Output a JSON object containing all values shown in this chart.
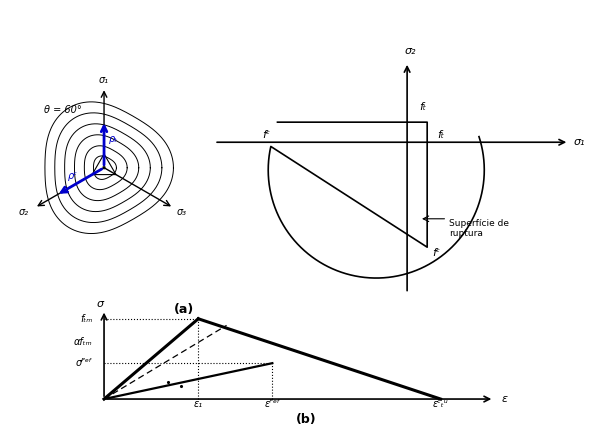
{
  "fig_width": 6.12,
  "fig_height": 4.3,
  "dpi": 100,
  "bg_color": "#ffffff",
  "panel_a_left": {
    "theta_label": "θ = 60°",
    "rho_t_label": "ρₜ",
    "rho_c_label": "ρᶜ",
    "sigma1_label": "σ₁",
    "sigma2_label": "σ₂",
    "sigma3_label": "σ₃",
    "radii": [
      0.15,
      0.28,
      0.42,
      0.56,
      0.7,
      0.84
    ],
    "blue_color": "#0000cc"
  },
  "panel_a_right": {
    "fc_label": "fᶜ",
    "ft_label": "fₜ",
    "sigma1_label": "σ₁",
    "sigma2_label": "σ₂",
    "surface_label": "Superfície de\nruptura",
    "ft": 0.13,
    "fc": -0.8
  },
  "panel_b": {
    "sigma_label": "σ",
    "epsilon_label": "ε",
    "ftm_label": "fₜₘ",
    "aftm_label": "αfₜₘ",
    "sigma_ref_label": "σᴾᵉᶠ",
    "eps1_label": "ε₁",
    "epsref_label": "εᴾᵉᶠ",
    "epsctu_label": "εᶜₜᵘ",
    "ftm": 0.85,
    "aftm": 0.6,
    "sigma_ref": 0.38,
    "eps1": 0.28,
    "epsref": 0.5,
    "epsctu": 1.0
  }
}
